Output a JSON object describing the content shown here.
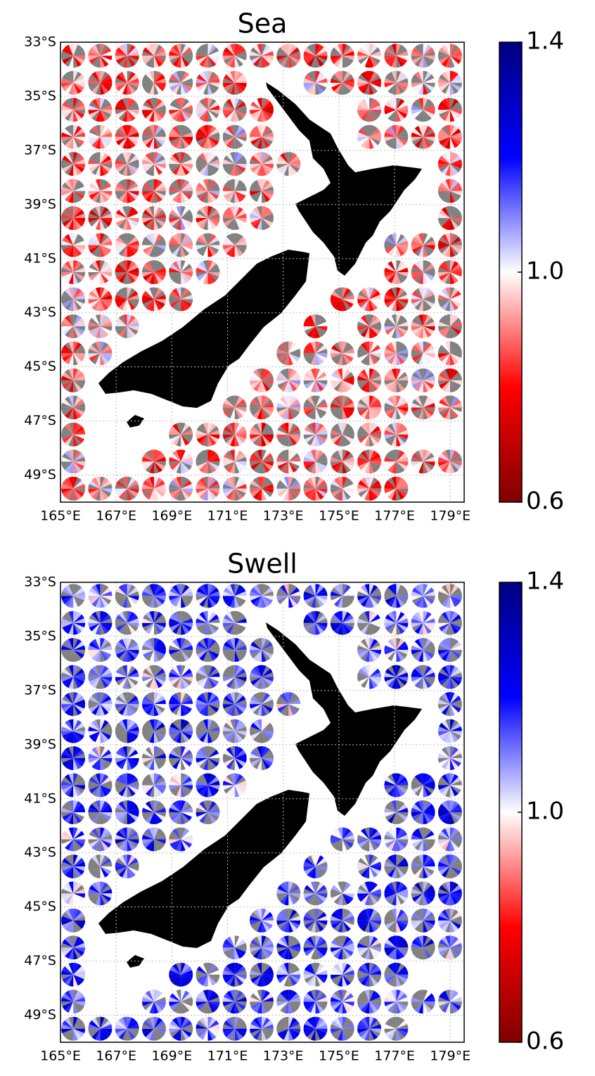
{
  "chart_data": [
    {
      "type": "map",
      "title": "Sea",
      "xlim": [
        165,
        179.5
      ],
      "ylim": [
        -50,
        -33
      ],
      "xticks": [
        {
          "value": 165,
          "label": "165°E"
        },
        {
          "value": 167,
          "label": "167°E"
        },
        {
          "value": 169,
          "label": "169°E"
        },
        {
          "value": 171,
          "label": "171°E"
        },
        {
          "value": 173,
          "label": "173°E"
        },
        {
          "value": 175,
          "label": "175°E"
        },
        {
          "value": 177,
          "label": "177°E"
        },
        {
          "value": 179,
          "label": "179°E"
        }
      ],
      "yticks": [
        {
          "value": -33,
          "label": "33°S"
        },
        {
          "value": -35,
          "label": "35°S"
        },
        {
          "value": -37,
          "label": "37°S"
        },
        {
          "value": -39,
          "label": "39°S"
        },
        {
          "value": -41,
          "label": "41°S"
        },
        {
          "value": -43,
          "label": "43°S"
        },
        {
          "value": -45,
          "label": "45°S"
        },
        {
          "value": -47,
          "label": "47°S"
        },
        {
          "value": -49,
          "label": "49°S"
        }
      ],
      "grid": true,
      "colorbar": {
        "lim": [
          0.6,
          1.4
        ],
        "ticks": [
          0.6,
          {
            "value": 1,
            "label": "1.0"
          },
          1.4
        ]
      }
    },
    {
      "type": "map",
      "title": "Swell",
      "xlim": [
        165,
        179.5
      ],
      "ylim": [
        -50,
        -33
      ],
      "xticks": [
        {
          "value": 165,
          "label": "165°E"
        },
        {
          "value": 167,
          "label": "167°E"
        },
        {
          "value": 169,
          "label": "169°E"
        },
        {
          "value": 171,
          "label": "171°E"
        },
        {
          "value": 173,
          "label": "173°E"
        },
        {
          "value": 175,
          "label": "175°E"
        },
        {
          "value": 177,
          "label": "177°E"
        },
        {
          "value": 179,
          "label": "179°E"
        }
      ],
      "yticks": [
        {
          "value": -33,
          "label": "33°S"
        },
        {
          "value": -35,
          "label": "35°S"
        },
        {
          "value": -37,
          "label": "37°S"
        },
        {
          "value": -39,
          "label": "39°S"
        },
        {
          "value": -41,
          "label": "41°S"
        },
        {
          "value": -43,
          "label": "43°S"
        },
        {
          "value": -45,
          "label": "45°S"
        },
        {
          "value": -47,
          "label": "47°S"
        },
        {
          "value": -49,
          "label": "49°S"
        }
      ],
      "grid": true,
      "colorbar": {
        "lim": [
          0.6,
          1.4
        ],
        "ticks": [
          0.6,
          {
            "value": 1,
            "label": "1.0"
          },
          1.4
        ]
      }
    }
  ]
}
